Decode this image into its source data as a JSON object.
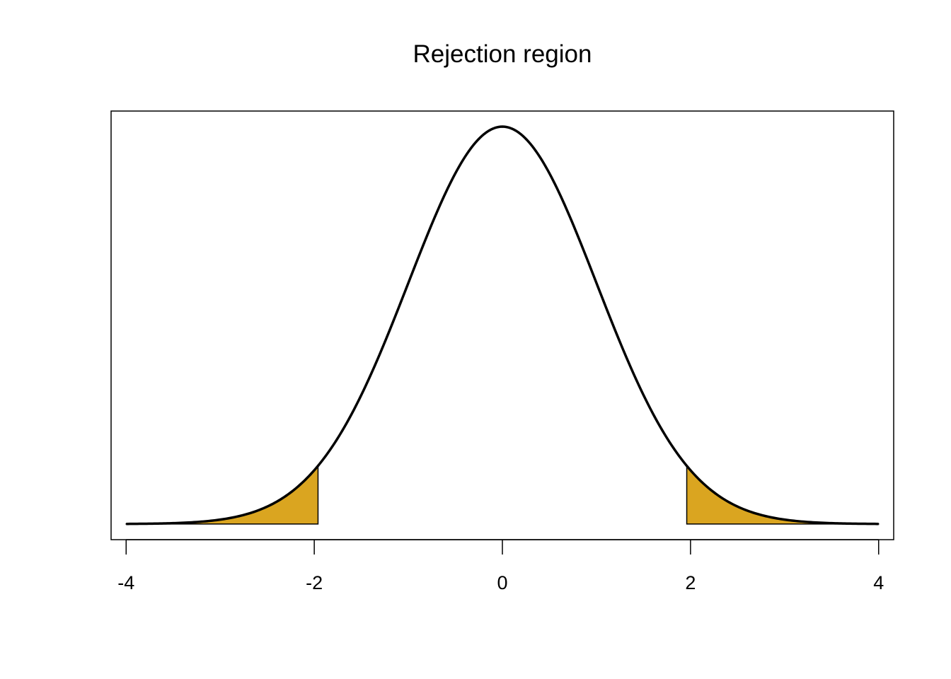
{
  "chart_data": {
    "type": "area",
    "title": "Rejection region",
    "xlabel": "",
    "ylabel": "",
    "x_ticks": [
      -4,
      -2,
      0,
      2,
      4
    ],
    "x_tick_labels": [
      "-4",
      "-2",
      "0",
      "2",
      "4"
    ],
    "xlim": [
      -4.16,
      4.16
    ],
    "ylim": [
      -0.0157,
      0.4146
    ],
    "curve": {
      "distribution": "standard normal density",
      "x_range": [
        -4,
        4
      ],
      "line_color": "#000000"
    },
    "rejection_regions": [
      {
        "from": -4,
        "to": -1.96,
        "fill": "#DAA520"
      },
      {
        "from": 1.96,
        "to": 4,
        "fill": "#DAA520"
      }
    ],
    "show_y_axis": false,
    "grid": false,
    "legend": "none"
  }
}
